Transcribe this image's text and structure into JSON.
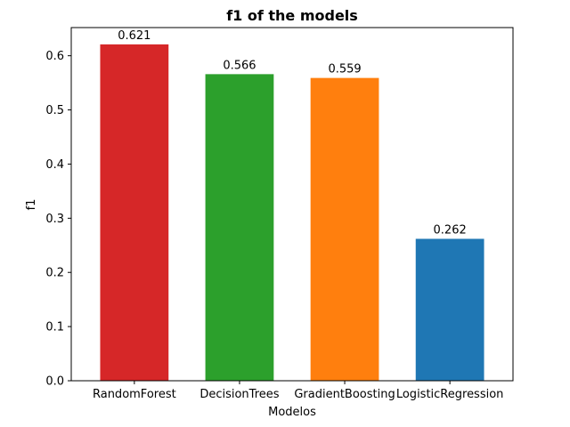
{
  "chart_data": {
    "type": "bar",
    "title": "f1 of the models",
    "xlabel": "Modelos",
    "ylabel": "f1",
    "categories": [
      "RandomForest",
      "DecisionTrees",
      "GradientBoosting",
      "LogisticRegression"
    ],
    "values": [
      0.621,
      0.566,
      0.559,
      0.262
    ],
    "data_labels": [
      "0.621",
      "0.566",
      "0.559",
      "0.262"
    ],
    "bar_colors": [
      "#d62728",
      "#2ca02c",
      "#ff7f0e",
      "#1f77b4"
    ],
    "ylim": [
      0,
      0.652
    ],
    "y_ticks": [
      0.0,
      0.1,
      0.2,
      0.3,
      0.4,
      0.5,
      0.6
    ],
    "y_tick_labels": [
      "0.0",
      "0.1",
      "0.2",
      "0.3",
      "0.4",
      "0.5",
      "0.6"
    ],
    "grid": false,
    "legend": "none"
  }
}
